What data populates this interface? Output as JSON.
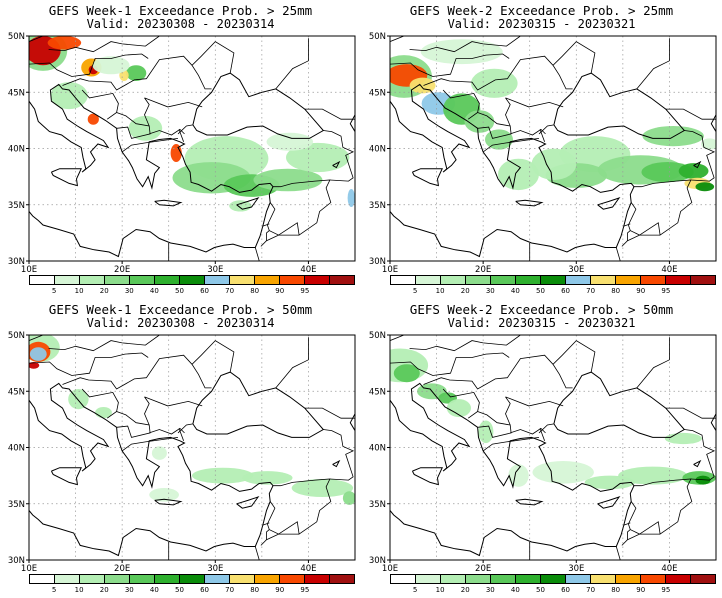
{
  "colors": {
    "bins": [
      "#ffffff",
      "#d6f5d6",
      "#b4eeb4",
      "#8cdc8c",
      "#5ac85a",
      "#2eb02e",
      "#0a8c0a",
      "#8ec8e8",
      "#f8e070",
      "#f8a400",
      "#f84800",
      "#c80000",
      "#a01010"
    ],
    "land_outline": "#000000",
    "grid": "#9a9a9a"
  },
  "colorbar": {
    "ticks": [
      "5",
      "10",
      "20",
      "30",
      "40",
      "50",
      "60",
      "70",
      "80",
      "90",
      "95"
    ]
  },
  "axes": {
    "y_labels": [
      "50N",
      "45N",
      "40N",
      "35N",
      "30N"
    ],
    "x_labels": [
      "10E",
      "20E",
      "30E",
      "40E"
    ]
  },
  "panels": [
    {
      "title": "GEFS Week-1 Exceedance Prob. > 25mm",
      "valid": "Valid: 20230308 - 20230314"
    },
    {
      "title": "GEFS Week-2 Exceedance Prob. > 25mm",
      "valid": "Valid: 20230315 - 20230321"
    },
    {
      "title": "GEFS Week-1 Exceedance Prob. > 50mm",
      "valid": "Valid: 20230308 - 20230314"
    },
    {
      "title": "GEFS Week-2 Exceedance Prob. > 50mm",
      "valid": "Valid: 20230315 - 20230321"
    }
  ]
}
